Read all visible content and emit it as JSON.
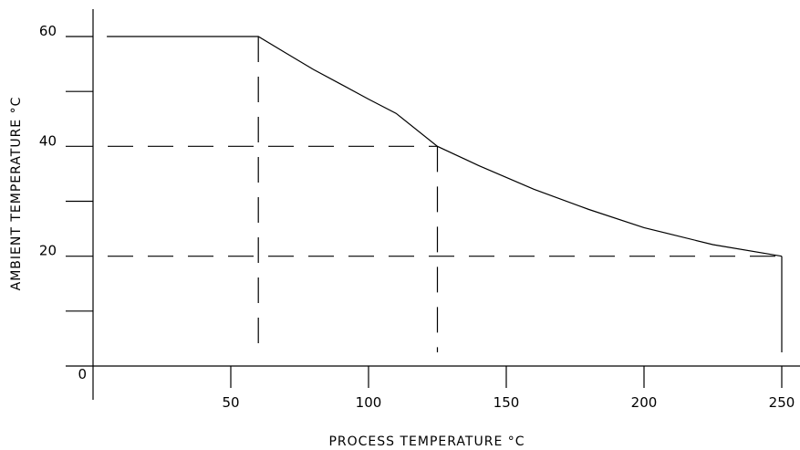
{
  "chart_data": {
    "type": "line",
    "xlabel": "PROCESS TEMPERATURE °C",
    "ylabel": "AMBIENT TEMPERATURE °C",
    "xlim": [
      0,
      250
    ],
    "ylim": [
      0,
      60
    ],
    "x_tick_labels": [
      "0",
      "50",
      "100",
      "150",
      "200",
      "250"
    ],
    "y_tick_labels": [
      "20",
      "40",
      "60"
    ],
    "y_minor_ticks": [
      10,
      30,
      50
    ],
    "x": [
      5,
      60,
      70,
      80,
      90,
      100,
      110,
      125,
      140,
      160,
      180,
      200,
      225,
      250
    ],
    "y": [
      60,
      60,
      57,
      54,
      51.3,
      48.6,
      46,
      40,
      36.5,
      32.2,
      28.5,
      25.2,
      22.1,
      20
    ],
    "guides": [
      {
        "x1": 60,
        "y1": 60,
        "x2": 60,
        "y2": 0
      },
      {
        "x1": 125,
        "y1": 40,
        "x2": 125,
        "y2": 0
      },
      {
        "x1": 0,
        "y1": 40,
        "x2": 125,
        "y2": 40
      },
      {
        "x1": 0,
        "y1": 20,
        "x2": 250,
        "y2": 20
      }
    ],
    "grid": false,
    "legend": "none"
  }
}
